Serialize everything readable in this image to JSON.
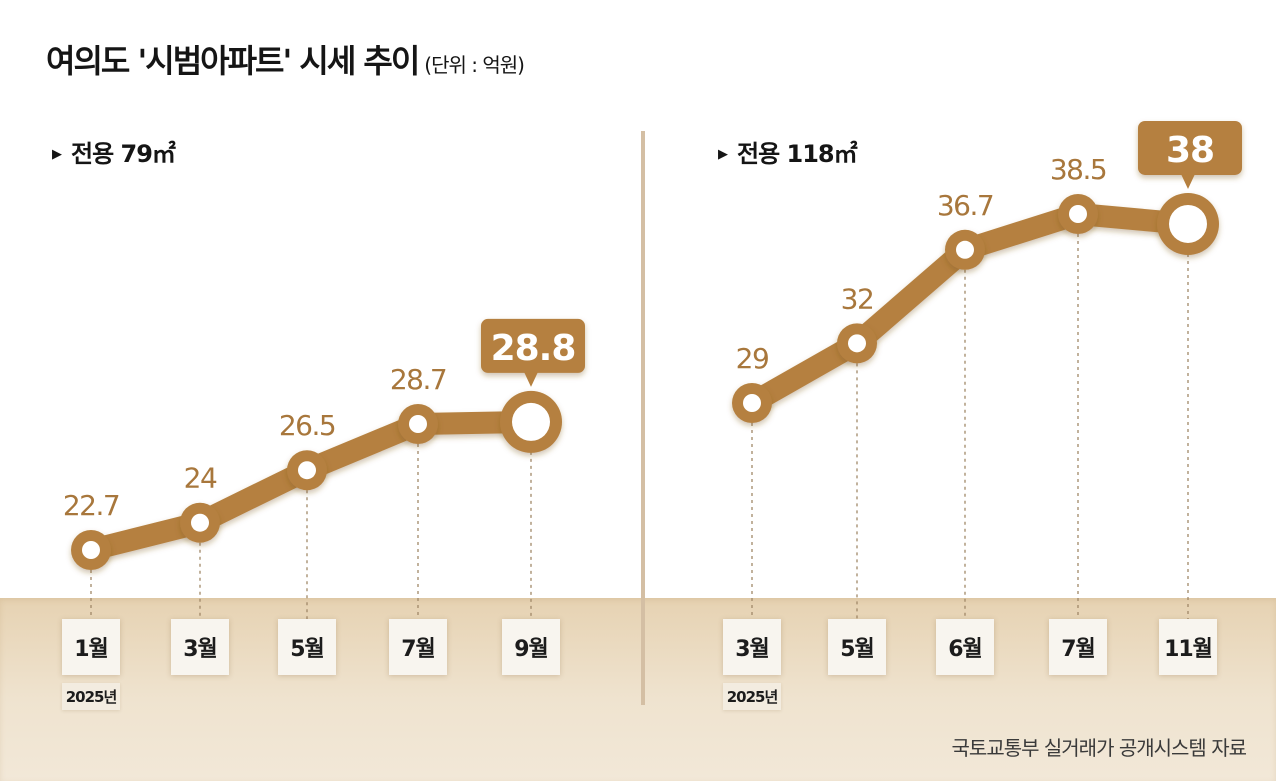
{
  "header": {
    "title": "여의도 '시범아파트' 시세 추이",
    "unit": "(단위 : 억원)"
  },
  "source": "국토교통부 실거래가 공개시스템 자료",
  "colors": {
    "accent": "#b5803f",
    "band": "#ead9be",
    "label_text": "#a8773c",
    "divider": "#d4bfa4"
  },
  "chart_data": [
    {
      "type": "line",
      "title": "전용 79㎡",
      "year_label": "2025년",
      "categories": [
        "1월",
        "3월",
        "5월",
        "7월",
        "9월"
      ],
      "values": [
        22.7,
        24,
        26.5,
        28.7,
        28.8
      ],
      "labels": [
        "22.7",
        "24",
        "26.5",
        "28.7",
        "28.8"
      ],
      "highlight_index": 4,
      "unit": "억원",
      "grid": false
    },
    {
      "type": "line",
      "title": "전용 118㎡",
      "year_label": "2025년",
      "categories": [
        "3월",
        "5월",
        "6월",
        "7월",
        "11월"
      ],
      "values": [
        29,
        32,
        36.7,
        38.5,
        38
      ],
      "labels": [
        "29",
        "32",
        "36.7",
        "38.5",
        "38"
      ],
      "highlight_index": 4,
      "unit": "억원",
      "grid": false
    }
  ]
}
